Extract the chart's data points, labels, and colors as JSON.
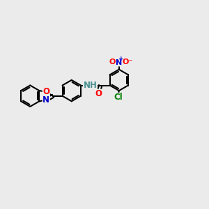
{
  "bg_color": "#ebebeb",
  "bond_color": "#000000",
  "bond_width": 1.5,
  "atom_colors": {
    "O": "#ff0000",
    "N": "#0000cc",
    "Cl": "#008000",
    "H": "#4a9090",
    "C": "#000000"
  },
  "font_size": 8.5
}
